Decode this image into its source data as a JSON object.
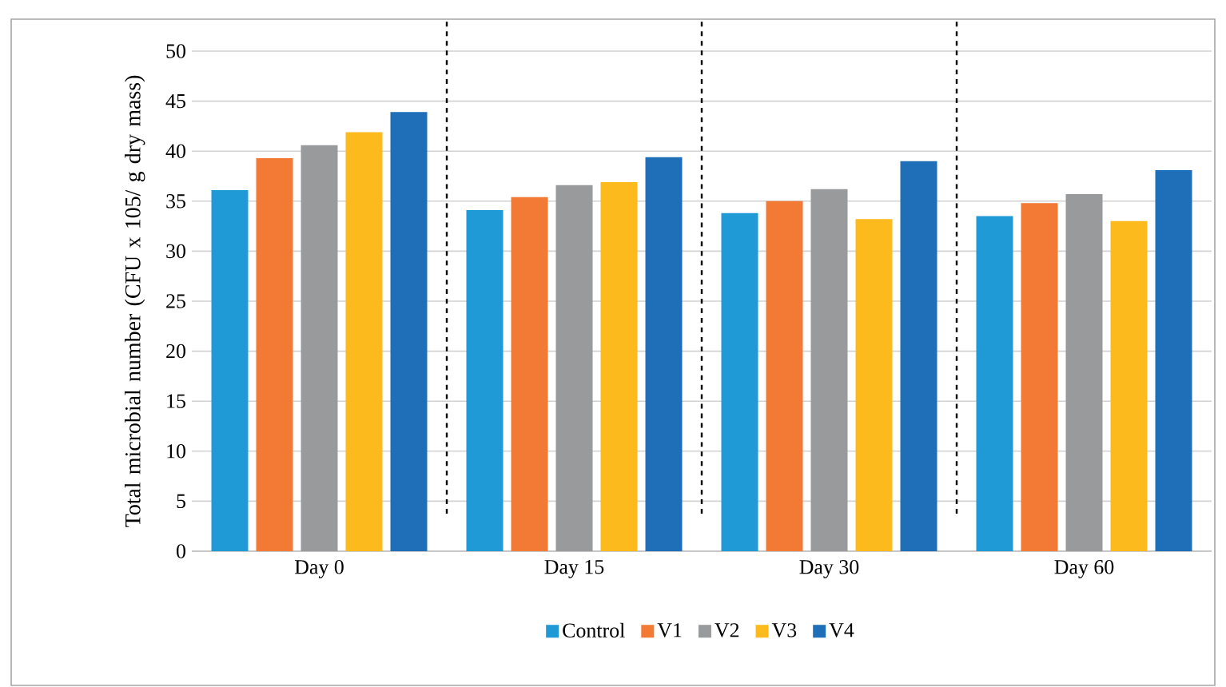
{
  "chart_data": {
    "type": "bar",
    "ylabel": "Total microbial number (CFU x 105/ g dry mass)",
    "categories": [
      "Day 0",
      "Day 15",
      "Day 30",
      "Day 60"
    ],
    "series": [
      {
        "name": "Control",
        "color": "#1f9ad6",
        "values": [
          36.1,
          34.1,
          33.8,
          33.5
        ]
      },
      {
        "name": "V1",
        "color": "#f27a35",
        "values": [
          39.3,
          35.4,
          35.0,
          34.8
        ]
      },
      {
        "name": "V2",
        "color": "#999a9c",
        "values": [
          40.6,
          36.6,
          36.2,
          35.7
        ]
      },
      {
        "name": "V3",
        "color": "#fcba1c",
        "values": [
          41.9,
          36.9,
          33.2,
          33.0
        ]
      },
      {
        "name": "V4",
        "color": "#1f6fb8",
        "values": [
          43.9,
          39.4,
          39.0,
          38.1
        ]
      }
    ],
    "ylim": [
      0,
      50
    ],
    "yticks": [
      0,
      5,
      10,
      15,
      20,
      25,
      30,
      35,
      40,
      45,
      50
    ],
    "grid": "y",
    "legend": "bottom"
  }
}
